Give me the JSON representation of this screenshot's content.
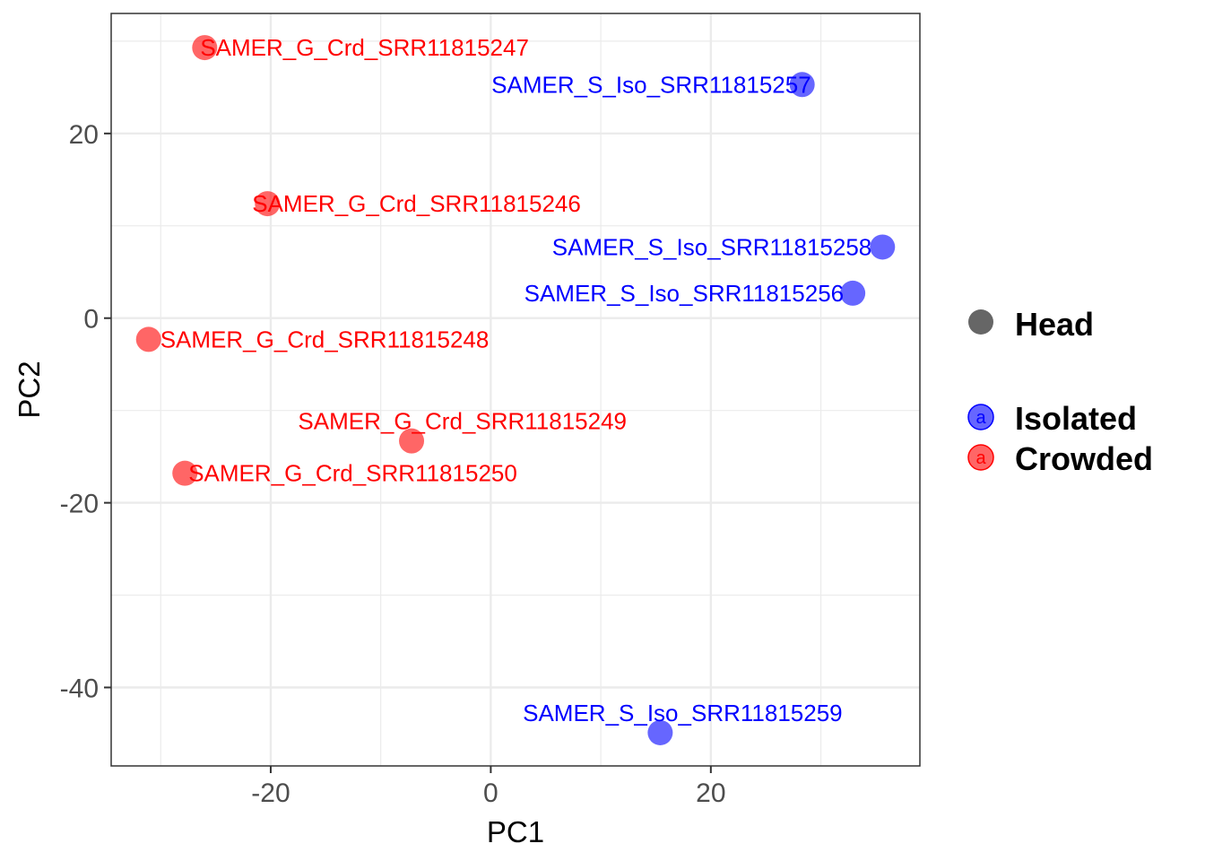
{
  "chart_data": {
    "type": "scatter",
    "xlabel": "PC1",
    "ylabel": "PC2",
    "xlim": [
      -34.5,
      39
    ],
    "ylim": [
      -48.5,
      33
    ],
    "x_ticks": [
      -20,
      0,
      20
    ],
    "y_ticks": [
      -40,
      -20,
      0,
      20
    ],
    "x_tick_labels": [
      "-20",
      "0",
      "20"
    ],
    "y_tick_labels": [
      "-40",
      "-20",
      "0",
      "20"
    ],
    "grid": true,
    "legend_position": "right",
    "colors": {
      "Isolated": "#0000ff",
      "Crowded": "#ff0000"
    },
    "legend": {
      "shape_title": "Head",
      "groups": [
        {
          "name": "Isolated",
          "key_letter": "a"
        },
        {
          "name": "Crowded",
          "key_letter": "a"
        }
      ]
    },
    "points": [
      {
        "label": "SAMER_G_Crd_SRR11815247",
        "group": "Crowded",
        "x": -26.0,
        "y": 29.3
      },
      {
        "label": "SAMER_S_Iso_SRR11815257",
        "group": "Isolated",
        "x": 28.3,
        "y": 25.3
      },
      {
        "label": "SAMER_G_Crd_SRR11815246",
        "group": "Crowded",
        "x": -20.3,
        "y": 12.4
      },
      {
        "label": "SAMER_S_Iso_SRR11815258",
        "group": "Isolated",
        "x": 35.6,
        "y": 7.7
      },
      {
        "label": "SAMER_S_Iso_SRR11815256",
        "group": "Isolated",
        "x": 32.9,
        "y": 2.7
      },
      {
        "label": "SAMER_G_Crd_SRR11815248",
        "group": "Crowded",
        "x": -31.1,
        "y": -2.3
      },
      {
        "label": "SAMER_G_Crd_SRR11815249",
        "group": "Crowded",
        "x": -7.2,
        "y": -13.3
      },
      {
        "label": "SAMER_G_Crd_SRR11815250",
        "group": "Crowded",
        "x": -27.8,
        "y": -16.8
      },
      {
        "label": "SAMER_S_Iso_SRR11815259",
        "group": "Isolated",
        "x": 15.4,
        "y": -44.9
      }
    ]
  }
}
